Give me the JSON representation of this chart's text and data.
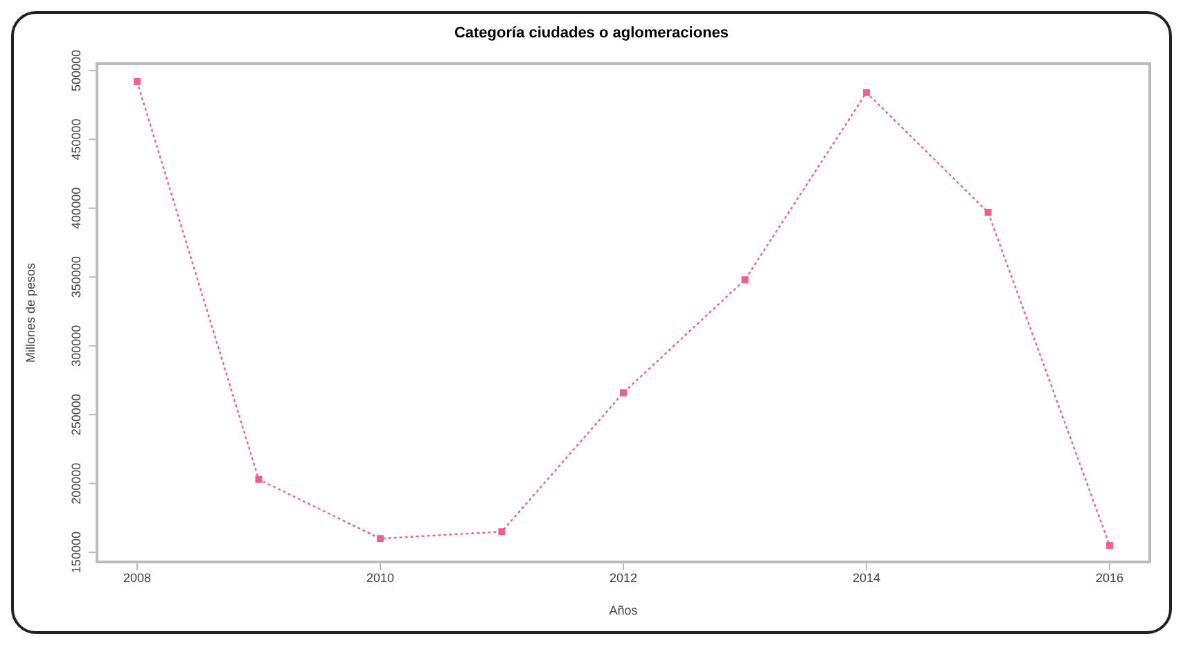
{
  "chart_data": {
    "type": "line",
    "title": "Categoría ciudades o aglomeraciones",
    "xlabel": "Años",
    "ylabel": "Millones de pesos",
    "x": [
      2008,
      2009,
      2010,
      2011,
      2012,
      2013,
      2014,
      2015,
      2016
    ],
    "series": [
      {
        "color": "#f0608f",
        "values": [
          492000,
          203000,
          160000,
          165000,
          266000,
          348000,
          484000,
          397000,
          155000
        ]
      }
    ],
    "xlim": [
      2007.67,
      2016.33
    ],
    "xticks": [
      2008,
      2010,
      2012,
      2014,
      2016
    ],
    "ylim": [
      143000,
      505000
    ],
    "yticks": [
      150000,
      200000,
      250000,
      300000,
      350000,
      400000,
      450000,
      500000
    ],
    "grid": false,
    "legend": false,
    "marker": "square",
    "line_style": "dotted"
  }
}
